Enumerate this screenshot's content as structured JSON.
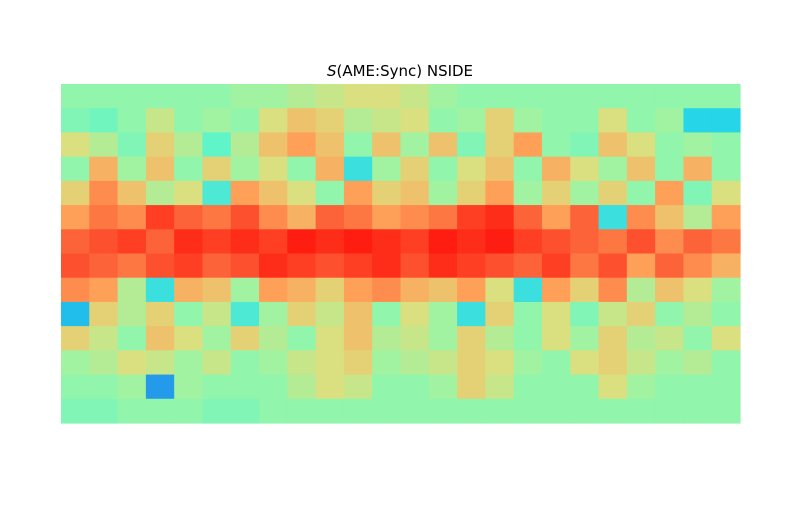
{
  "chart_data": {
    "type": "heatmap",
    "title_var": "S",
    "title_rest": "(AME:Sync) NSIDE",
    "projection": "mollweide-like full-sky map (plate carree render)",
    "colormap": "rainbow",
    "colormap_stops": [
      "#2b55e8",
      "#1fd1ec",
      "#63f5c8",
      "#9cf5a4",
      "#dfdd7c",
      "#fea35a",
      "#fd5a34",
      "#ff1c10"
    ],
    "grid": false,
    "cell_values_rows_top_to_bottom": [
      [
        0.4,
        0.4,
        0.4,
        0.4,
        0.4,
        0.4,
        0.44,
        0.44,
        0.48,
        0.52,
        0.56,
        0.56,
        0.52,
        0.44,
        0.4,
        0.4,
        0.4,
        0.4,
        0.4,
        0.4,
        0.4,
        0.4,
        0.4,
        0.4
      ],
      [
        0.36,
        0.32,
        0.4,
        0.52,
        0.4,
        0.44,
        0.4,
        0.56,
        0.64,
        0.6,
        0.48,
        0.52,
        0.56,
        0.4,
        0.44,
        0.6,
        0.44,
        0.4,
        0.4,
        0.56,
        0.4,
        0.44,
        0.16,
        0.16
      ],
      [
        0.56,
        0.48,
        0.36,
        0.6,
        0.48,
        0.28,
        0.48,
        0.64,
        0.72,
        0.64,
        0.4,
        0.64,
        0.44,
        0.64,
        0.36,
        0.6,
        0.72,
        0.4,
        0.36,
        0.64,
        0.56,
        0.4,
        0.44,
        0.4
      ],
      [
        0.4,
        0.68,
        0.44,
        0.64,
        0.4,
        0.6,
        0.44,
        0.56,
        0.4,
        0.68,
        0.2,
        0.44,
        0.6,
        0.4,
        0.56,
        0.64,
        0.4,
        0.68,
        0.56,
        0.44,
        0.64,
        0.4,
        0.68,
        0.4
      ],
      [
        0.6,
        0.76,
        0.64,
        0.48,
        0.56,
        0.24,
        0.72,
        0.64,
        0.56,
        0.4,
        0.72,
        0.6,
        0.64,
        0.44,
        0.6,
        0.72,
        0.44,
        0.6,
        0.44,
        0.6,
        0.4,
        0.72,
        0.36,
        0.56
      ],
      [
        0.72,
        0.8,
        0.76,
        0.92,
        0.84,
        0.8,
        0.88,
        0.76,
        0.68,
        0.84,
        0.8,
        0.72,
        0.76,
        0.8,
        0.92,
        0.96,
        0.84,
        0.72,
        0.84,
        0.2,
        0.76,
        0.64,
        0.48,
        0.72
      ],
      [
        0.84,
        0.88,
        0.92,
        0.84,
        0.96,
        0.92,
        0.96,
        0.92,
        1.0,
        0.96,
        1.0,
        0.96,
        0.92,
        1.0,
        0.96,
        1.0,
        0.92,
        0.88,
        0.84,
        0.8,
        0.88,
        0.76,
        0.84,
        0.8
      ],
      [
        0.88,
        0.84,
        0.8,
        0.88,
        0.92,
        0.84,
        0.88,
        0.96,
        0.92,
        0.88,
        0.92,
        0.96,
        0.88,
        0.96,
        0.92,
        0.88,
        0.84,
        0.92,
        0.8,
        0.88,
        0.72,
        0.84,
        0.76,
        0.68
      ],
      [
        0.76,
        0.72,
        0.48,
        0.2,
        0.68,
        0.64,
        0.44,
        0.72,
        0.68,
        0.6,
        0.72,
        0.76,
        0.68,
        0.64,
        0.72,
        0.56,
        0.2,
        0.72,
        0.6,
        0.76,
        0.48,
        0.64,
        0.56,
        0.44
      ],
      [
        0.12,
        0.6,
        0.48,
        0.6,
        0.4,
        0.52,
        0.24,
        0.44,
        0.6,
        0.52,
        0.64,
        0.4,
        0.56,
        0.44,
        0.2,
        0.6,
        0.4,
        0.56,
        0.36,
        0.52,
        0.6,
        0.4,
        0.48,
        0.4
      ],
      [
        0.6,
        0.52,
        0.4,
        0.64,
        0.56,
        0.44,
        0.6,
        0.48,
        0.4,
        0.56,
        0.64,
        0.48,
        0.52,
        0.44,
        0.6,
        0.48,
        0.4,
        0.56,
        0.44,
        0.6,
        0.48,
        0.52,
        0.4,
        0.56
      ],
      [
        0.44,
        0.48,
        0.56,
        0.52,
        0.44,
        0.52,
        0.4,
        0.44,
        0.52,
        0.56,
        0.6,
        0.44,
        0.48,
        0.52,
        0.6,
        0.56,
        0.44,
        0.4,
        0.56,
        0.6,
        0.52,
        0.44,
        0.48,
        0.4
      ],
      [
        0.4,
        0.4,
        0.44,
        0.08,
        0.44,
        0.4,
        0.4,
        0.4,
        0.48,
        0.56,
        0.52,
        0.4,
        0.4,
        0.44,
        0.6,
        0.52,
        0.4,
        0.4,
        0.4,
        0.56,
        0.44,
        0.4,
        0.4,
        0.4
      ],
      [
        0.36,
        0.36,
        0.4,
        0.4,
        0.4,
        0.36,
        0.36,
        0.4,
        0.4,
        0.4,
        0.4,
        0.4,
        0.4,
        0.4,
        0.4,
        0.4,
        0.4,
        0.4,
        0.4,
        0.4,
        0.4,
        0.4,
        0.4,
        0.4
      ]
    ]
  }
}
